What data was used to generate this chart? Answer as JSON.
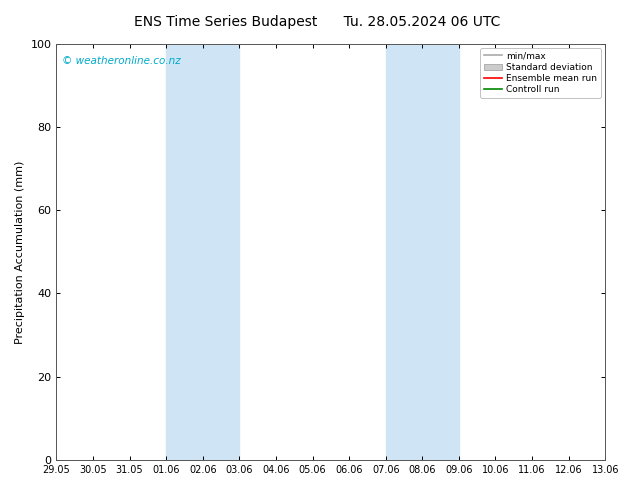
{
  "title_left": "ENS Time Series Budapest",
  "title_right": "Tu. 28.05.2024 06 UTC",
  "ylabel": "Precipitation Accumulation (mm)",
  "ylim": [
    0,
    100
  ],
  "yticks": [
    0,
    20,
    40,
    60,
    80,
    100
  ],
  "xtick_labels": [
    "29.05",
    "30.05",
    "31.05",
    "01.06",
    "02.06",
    "03.06",
    "04.06",
    "05.06",
    "06.06",
    "07.06",
    "08.06",
    "09.06",
    "10.06",
    "11.06",
    "12.06",
    "13.06"
  ],
  "shaded_bands": [
    {
      "xstart": 3,
      "xend": 5,
      "color": "#cfe4f5"
    },
    {
      "xstart": 9,
      "xend": 11,
      "color": "#cfe4f5"
    }
  ],
  "watermark": "© weatheronline.co.nz",
  "watermark_color": "#00aacc",
  "legend_items": [
    {
      "label": "min/max",
      "color": "#aaaaaa",
      "lw": 1.2,
      "type": "line"
    },
    {
      "label": "Standard deviation",
      "color": "#cccccc",
      "type": "fill"
    },
    {
      "label": "Ensemble mean run",
      "color": "#ff0000",
      "lw": 1.2,
      "type": "line"
    },
    {
      "label": "Controll run",
      "color": "#008800",
      "lw": 1.2,
      "type": "line"
    }
  ],
  "background_color": "#ffffff",
  "axes_background": "#ffffff",
  "spine_color": "#555555"
}
